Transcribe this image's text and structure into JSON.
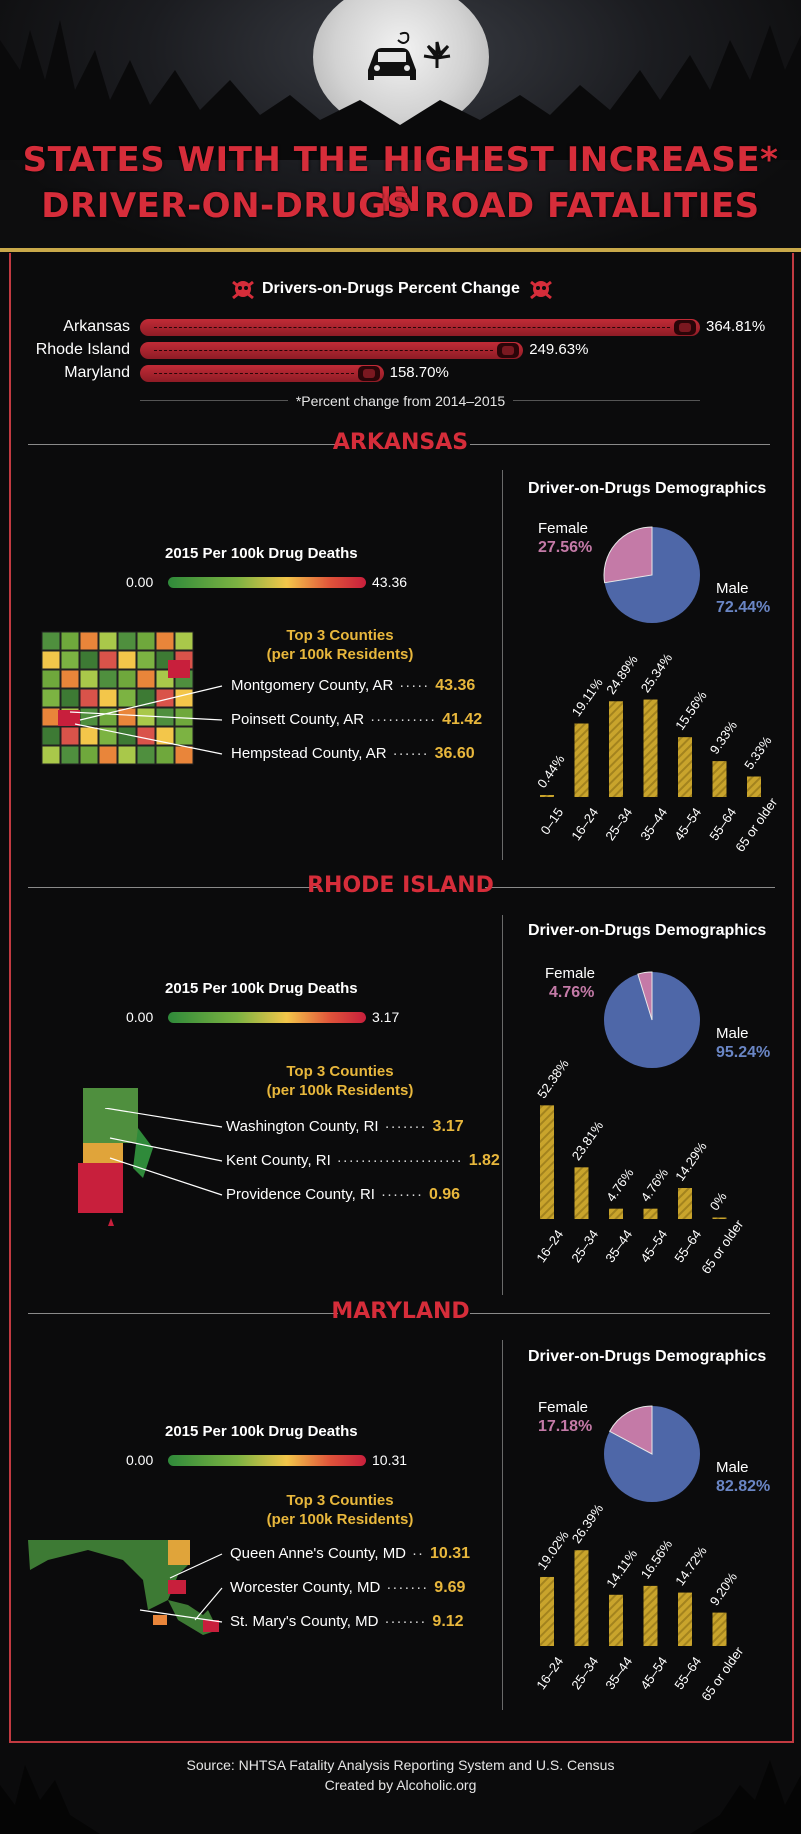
{
  "header": {
    "title_line1": "STATES WITH THE HIGHEST INCREASE* IN",
    "title_line2": "DRIVER-ON-DRUGS ROAD FATALITIES"
  },
  "percent_change": {
    "title": "Drivers-on-Drugs Percent Change",
    "note": "*Percent change from 2014–2015"
  },
  "colors": {
    "red": "#d62d3a",
    "gold": "#e8b73c",
    "female": "#c47aa7",
    "male": "#4e67a8"
  },
  "states": [
    {
      "name": "ARKANSAS",
      "legend": {
        "title": "2015 Per 100k Drug Deaths",
        "min": "0.00",
        "max": "43.36"
      },
      "counties_title_1": "Top 3 Counties",
      "counties_title_2": "(per 100k Residents)",
      "counties": [
        {
          "name": "Montgomery County, AR",
          "dots": "·····",
          "value": "43.36"
        },
        {
          "name": "Poinsett County, AR",
          "dots": "···········",
          "value": "41.42"
        },
        {
          "name": "Hempstead County, AR",
          "dots": "······",
          "value": "36.60"
        }
      ],
      "demo_title": "Driver-on-Drugs Demographics",
      "female_label": "Female",
      "male_label": "Male"
    },
    {
      "name": "RHODE ISLAND",
      "legend": {
        "title": "2015 Per 100k Drug Deaths",
        "min": "0.00",
        "max": "3.17"
      },
      "counties_title_1": "Top 3 Counties",
      "counties_title_2": "(per 100k Residents)",
      "counties": [
        {
          "name": "Washington County, RI",
          "dots": "·······",
          "value": "3.17"
        },
        {
          "name": "Kent County, RI",
          "dots": "·····················",
          "value": "1.82"
        },
        {
          "name": "Providence County, RI",
          "dots": "·······",
          "value": "0.96"
        }
      ],
      "demo_title": "Driver-on-Drugs Demographics",
      "female_label": "Female",
      "male_label": "Male"
    },
    {
      "name": "MARYLAND",
      "legend": {
        "title": "2015 Per 100k Drug Deaths",
        "min": "0.00",
        "max": "10.31"
      },
      "counties_title_1": "Top 3 Counties",
      "counties_title_2": "(per 100k Residents)",
      "counties": [
        {
          "name": "Queen Anne's County, MD",
          "dots": "··",
          "value": "10.31"
        },
        {
          "name": "Worcester County, MD",
          "dots": "·······",
          "value": "9.69"
        },
        {
          "name": "St. Mary's County, MD",
          "dots": "·······",
          "value": "9.12"
        }
      ],
      "demo_title": "Driver-on-Drugs Demographics",
      "female_label": "Female",
      "male_label": "Male"
    }
  ],
  "chart_data": [
    {
      "type": "bar",
      "title": "Drivers-on-Drugs Percent Change",
      "orientation": "horizontal",
      "categories": [
        "Arkansas",
        "Rhode Island",
        "Maryland"
      ],
      "values": [
        364.81,
        249.63,
        158.7
      ],
      "labels": [
        "364.81%",
        "249.63%",
        "158.70%"
      ]
    },
    {
      "type": "pie",
      "title": "Arkansas Driver-on-Drugs Demographics",
      "categories": [
        "Female",
        "Male"
      ],
      "values": [
        27.56,
        72.44
      ],
      "labels": [
        "27.56%",
        "72.44%"
      ]
    },
    {
      "type": "bar",
      "title": "Arkansas Driver-on-Drugs Age Groups",
      "categories": [
        "0–15",
        "16–24",
        "25–34",
        "35–44",
        "45–54",
        "55–64",
        "65 or older"
      ],
      "values": [
        0.44,
        19.11,
        24.89,
        25.34,
        15.56,
        9.33,
        5.33
      ],
      "labels": [
        "0.44%",
        "19.11%",
        "24.89%",
        "25.34%",
        "15.56%",
        "9.33%",
        "5.33%"
      ],
      "ylim": [
        0,
        26
      ]
    },
    {
      "type": "pie",
      "title": "Rhode Island Driver-on-Drugs Demographics",
      "categories": [
        "Female",
        "Male"
      ],
      "values": [
        4.76,
        95.24
      ],
      "labels": [
        "4.76%",
        "95.24%"
      ]
    },
    {
      "type": "bar",
      "title": "Rhode Island Driver-on-Drugs Age Groups",
      "categories": [
        "16–24",
        "25–34",
        "35–44",
        "45–54",
        "55–64",
        "65 or older"
      ],
      "values": [
        52.38,
        23.81,
        4.76,
        4.76,
        14.29,
        0
      ],
      "labels": [
        "52.38%",
        "23.81%",
        "4.76%",
        "4.76%",
        "14.29%",
        "0%"
      ],
      "ylim": [
        0,
        53
      ]
    },
    {
      "type": "pie",
      "title": "Maryland Driver-on-Drugs Demographics",
      "categories": [
        "Female",
        "Male"
      ],
      "values": [
        17.18,
        82.82
      ],
      "labels": [
        "17.18%",
        "82.82%"
      ]
    },
    {
      "type": "bar",
      "title": "Maryland Driver-on-Drugs Age Groups",
      "categories": [
        "16–24",
        "25–34",
        "35–44",
        "45–54",
        "55–64",
        "65 or older"
      ],
      "values": [
        19.02,
        26.39,
        14.11,
        16.56,
        14.72,
        9.2
      ],
      "labels": [
        "19.02%",
        "26.39%",
        "14.11%",
        "16.56%",
        "14.72%",
        "9.20%"
      ],
      "ylim": [
        0,
        27
      ]
    }
  ],
  "footer": {
    "line1": "Source: NHTSA Fatality Analysis Reporting System and U.S. Census",
    "line2": "Created by Alcoholic.org"
  }
}
